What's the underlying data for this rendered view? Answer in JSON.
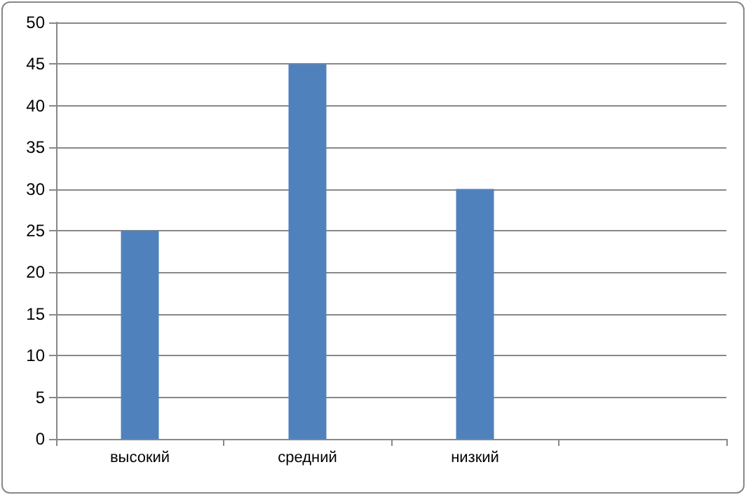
{
  "chart_data": {
    "type": "bar",
    "categories": [
      "высокий",
      "средний",
      "низкий",
      null
    ],
    "values": [
      25,
      45,
      30,
      null
    ],
    "color": "#4f81bd",
    "ylim": [
      0,
      50
    ],
    "yticks": [
      0,
      5,
      10,
      15,
      20,
      25,
      30,
      35,
      40,
      45,
      50
    ],
    "grid": "y"
  }
}
